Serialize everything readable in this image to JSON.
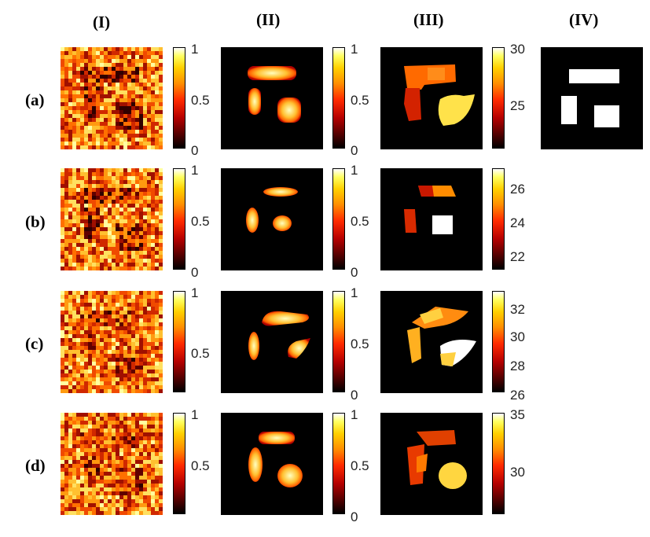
{
  "columns": [
    "(I)",
    "(II)",
    "(III)",
    "(IV)"
  ],
  "rows": [
    "(a)",
    "(b)",
    "(c)",
    "(d)"
  ],
  "colorbars": {
    "a1": [
      "1",
      "0.5",
      "0"
    ],
    "a2": [
      "1",
      "0.5",
      "0"
    ],
    "a3": [
      "30",
      "25"
    ],
    "b1": [
      "1",
      "0.5",
      "0"
    ],
    "b2": [
      "1",
      "0.5",
      "0"
    ],
    "b3": [
      "26",
      "24",
      "22"
    ],
    "c1": [
      "1",
      "0.5"
    ],
    "c2": [
      "1",
      "0.5",
      "0"
    ],
    "c3": [
      "32",
      "30",
      "28",
      "26"
    ],
    "d1": [
      "1",
      "0.5"
    ],
    "d2": [
      "1",
      "0.5",
      "0"
    ],
    "d3": [
      "35",
      "30"
    ]
  }
}
